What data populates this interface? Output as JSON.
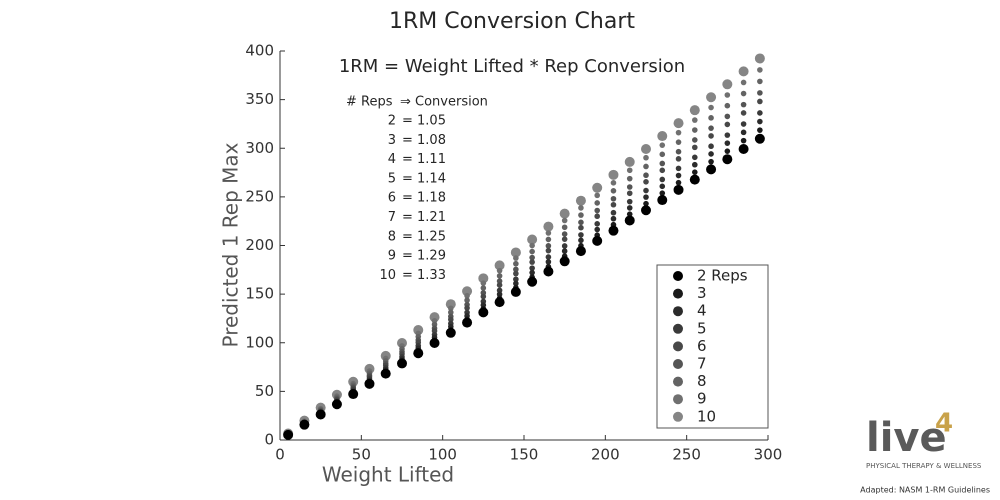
{
  "chart_data": {
    "type": "scatter",
    "title": "1RM Conversion Chart",
    "formula": "1RM = Weight Lifted * Rep Conversion",
    "conversion_table": {
      "header": [
        "# Reps",
        "⇒ Conversion"
      ],
      "rows": [
        [
          "2",
          "= 1.05"
        ],
        [
          "3",
          "= 1.08"
        ],
        [
          "4",
          "= 1.11"
        ],
        [
          "5",
          "= 1.14"
        ],
        [
          "6",
          "= 1.18"
        ],
        [
          "7",
          "= 1.21"
        ],
        [
          "8",
          "= 1.25"
        ],
        [
          "9",
          "= 1.29"
        ],
        [
          "10",
          "= 1.33"
        ]
      ]
    },
    "x_label": "Weight Lifted",
    "y_label": "Predicted 1 Rep Max",
    "xlim": [
      0,
      300
    ],
    "xticks": [
      0,
      50,
      100,
      150,
      200,
      250,
      300
    ],
    "ylim": [
      0,
      400
    ],
    "yticks": [
      0,
      50,
      100,
      150,
      200,
      250,
      300,
      350,
      400
    ],
    "legend": "lower right",
    "x": [
      5,
      15,
      25,
      35,
      45,
      55,
      65,
      75,
      85,
      95,
      105,
      115,
      125,
      135,
      145,
      155,
      165,
      175,
      185,
      195,
      205,
      215,
      225,
      235,
      245,
      255,
      265,
      275,
      285,
      295
    ],
    "series": [
      {
        "name": "2 Reps",
        "color": "#000000",
        "values": [
          5.25,
          15.75,
          26.25,
          36.75,
          47.25,
          57.75,
          68.25,
          78.75,
          89.25,
          99.75,
          110.25,
          120.75,
          131.25,
          141.75,
          152.25,
          162.75,
          173.25,
          183.75,
          194.25,
          204.75,
          215.25,
          225.75,
          236.25,
          246.75,
          257.25,
          267.75,
          278.25,
          288.75,
          299.25,
          309.75
        ]
      },
      {
        "name": "3",
        "color": "#1a1a1a",
        "values": [
          5.4,
          16.2,
          27,
          37.8,
          48.6,
          59.4,
          70.2,
          81,
          91.8,
          102.6,
          113.4,
          124.2,
          135,
          145.8,
          156.6,
          167.4,
          178.2,
          189,
          199.8,
          210.6,
          221.4,
          232.2,
          243,
          253.8,
          264.6,
          275.4,
          286.2,
          297,
          307.8,
          318.6
        ]
      },
      {
        "name": "4",
        "color": "#2b2b2b",
        "values": [
          5.55,
          16.65,
          27.75,
          38.85,
          49.95,
          61.05,
          72.15,
          83.25,
          94.35,
          105.45,
          116.55,
          127.65,
          138.75,
          149.85,
          160.95,
          172.05,
          183.15,
          194.25,
          205.35,
          216.45,
          227.55,
          238.65,
          249.75,
          260.85,
          271.95,
          283.05,
          294.15,
          305.25,
          316.35,
          327.45
        ]
      },
      {
        "name": "5",
        "color": "#3a3a3a",
        "values": [
          5.7,
          17.1,
          28.5,
          39.9,
          51.3,
          62.7,
          74.1,
          85.5,
          96.9,
          108.3,
          119.7,
          131.1,
          142.5,
          153.9,
          165.3,
          176.7,
          188.1,
          199.5,
          210.9,
          222.3,
          233.7,
          245.1,
          256.5,
          267.9,
          279.3,
          290.7,
          302.1,
          313.5,
          324.9,
          336.3
        ]
      },
      {
        "name": "6",
        "color": "#484848",
        "values": [
          5.9,
          17.7,
          29.5,
          41.3,
          53.1,
          64.9,
          76.7,
          88.5,
          100.3,
          112.1,
          123.9,
          135.7,
          147.5,
          159.3,
          171.1,
          182.9,
          194.7,
          206.5,
          218.3,
          230.1,
          241.9,
          253.7,
          265.5,
          277.3,
          289.1,
          300.9,
          312.7,
          324.5,
          336.3,
          348.1
        ]
      },
      {
        "name": "7",
        "color": "#555555",
        "values": [
          6.05,
          18.15,
          30.25,
          42.35,
          54.45,
          66.55,
          78.65,
          90.75,
          102.85,
          114.95,
          127.05,
          139.15,
          151.25,
          163.35,
          175.45,
          187.55,
          199.65,
          211.75,
          223.85,
          235.95,
          248.05,
          260.15,
          272.25,
          284.35,
          296.45,
          308.55,
          320.65,
          332.75,
          344.85,
          356.95
        ]
      },
      {
        "name": "8",
        "color": "#636363",
        "values": [
          6.25,
          18.75,
          31.25,
          43.75,
          56.25,
          68.75,
          81.25,
          93.75,
          106.25,
          118.75,
          131.25,
          143.75,
          156.25,
          168.75,
          181.25,
          193.75,
          206.25,
          218.75,
          231.25,
          243.75,
          256.25,
          268.75,
          281.25,
          293.75,
          306.25,
          318.75,
          331.25,
          343.75,
          356.25,
          368.75
        ]
      },
      {
        "name": "9",
        "color": "#707070",
        "values": [
          6.45,
          19.35,
          32.25,
          45.15,
          58.05,
          70.95,
          83.85,
          96.75,
          109.65,
          122.55,
          135.45,
          148.35,
          161.25,
          174.15,
          187.05,
          199.95,
          212.85,
          225.75,
          238.65,
          251.55,
          264.45,
          277.35,
          290.25,
          303.15,
          316.05,
          328.95,
          341.85,
          354.75,
          367.65,
          380.55
        ]
      },
      {
        "name": "10",
        "color": "#858585",
        "values": [
          6.65,
          19.95,
          33.25,
          46.55,
          59.85,
          73.15,
          86.45,
          99.75,
          113.05,
          126.35,
          139.65,
          152.95,
          166.25,
          179.55,
          192.85,
          206.15,
          219.45,
          232.75,
          246.05,
          259.35,
          272.65,
          285.95,
          299.25,
          312.55,
          325.85,
          339.15,
          352.45,
          365.75,
          379.05,
          392.35
        ]
      }
    ]
  },
  "footer": {
    "logo": "live",
    "logo_mark": "4",
    "tagline": "PHYSICAL THERAPY & WELLNESS",
    "source": "Adapted: NASM 1-RM Guidelines"
  }
}
